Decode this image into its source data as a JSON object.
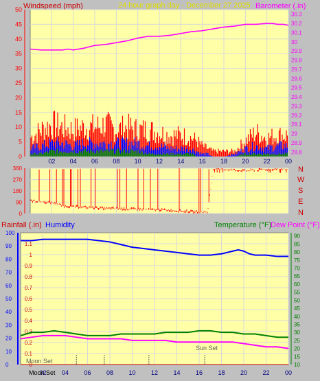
{
  "header": {
    "left_label": "Windspeed (mph)",
    "center_label": "24 hour graph day - December 27 2025",
    "right_label": "Barometer (.in)"
  },
  "colors": {
    "background": "#c0c0c0",
    "plot_bg": "#ffffa8",
    "grid": "#d8d8d8",
    "wind_gust": "#ff0000",
    "wind_avg": "#0000ff",
    "wind_low": "#008000",
    "barometer": "#ff00ff",
    "direction": "#ff0000",
    "humidity": "#0000ff",
    "temperature": "#008000",
    "dewpoint": "#ff00ff",
    "left_axis": "#ff0000",
    "right_axis": "#ff00ff",
    "rain_axis": "#0000ff",
    "temp_axis": "#008000",
    "label_red": "#cc0000",
    "label_yellow": "#e0e000",
    "moon_sun_marker": "#606060"
  },
  "x_tick_labels": [
    "02",
    "04",
    "06",
    "08",
    "10",
    "12",
    "14",
    "16",
    "18",
    "20",
    "22",
    "00"
  ],
  "chart_data": [
    {
      "type": "line",
      "name": "wind-barometer",
      "xlabel": "",
      "x_ticks": [
        "02",
        "04",
        "06",
        "08",
        "10",
        "12",
        "14",
        "16",
        "18",
        "20",
        "22",
        "00"
      ],
      "y_left_label": "Windspeed (mph)",
      "y_left_ticks": [
        0,
        5,
        10,
        15,
        20,
        25,
        30,
        35,
        40,
        45,
        50
      ],
      "ylim_left": [
        0,
        50
      ],
      "y_right_label": "Barometer (.in)",
      "y_right_ticks": [
        "28.8",
        "28.9",
        "29",
        "29.1",
        "29.2",
        "29.3",
        "29.4",
        "29.5",
        "29.6",
        "29.7",
        "29.8",
        "29.9",
        "30",
        "30.1",
        "30.2",
        "30.3"
      ],
      "ylim_right": [
        28.75,
        30.35
      ],
      "grid": true,
      "barometer_series": {
        "x": [
          0,
          1,
          2,
          3,
          3.5,
          4,
          5,
          6,
          7,
          8,
          9,
          10,
          10.5,
          11,
          12,
          13,
          14,
          15,
          16,
          17,
          18,
          19,
          20,
          21,
          22,
          22.5,
          23,
          23.5,
          24
        ],
        "y": [
          29.92,
          29.91,
          29.91,
          29.91,
          29.92,
          29.91,
          29.93,
          29.96,
          29.97,
          29.99,
          30.01,
          30.04,
          30.05,
          30.06,
          30.06,
          30.07,
          30.09,
          30.11,
          30.12,
          30.14,
          30.16,
          30.17,
          30.19,
          30.19,
          30.2,
          30.2,
          30.19,
          30.19,
          30.18
        ]
      },
      "wind_gust_series": {
        "x": [
          0,
          1,
          2,
          3,
          4,
          5,
          6,
          7,
          8,
          9,
          10,
          11,
          12,
          13,
          14,
          15,
          15.5,
          16,
          16.5,
          17,
          18,
          19,
          20,
          21,
          22,
          23,
          24
        ],
        "y": [
          7,
          10,
          12,
          11,
          10,
          11,
          11,
          12,
          10,
          11,
          10,
          10,
          9,
          8,
          8,
          7,
          6,
          4,
          3,
          2,
          2,
          2,
          6,
          9,
          7,
          8,
          8
        ]
      },
      "wind_avg_series": {
        "x": [
          0,
          1,
          2,
          3,
          4,
          5,
          6,
          7,
          8,
          9,
          10,
          11,
          12,
          13,
          14,
          15,
          15.5,
          16,
          16.5,
          17,
          18,
          19,
          20,
          21,
          22,
          23,
          24
        ],
        "y": [
          3,
          4,
          5,
          5,
          4,
          5,
          5,
          5,
          5,
          5,
          5,
          4,
          4,
          3,
          3,
          3,
          2,
          1,
          1,
          0,
          0,
          1,
          3,
          4,
          3,
          4,
          4
        ]
      },
      "wind_low_series": {
        "x": [
          0,
          1,
          2,
          3,
          4,
          5,
          6,
          7,
          8,
          9,
          10,
          11,
          12,
          13,
          14,
          15,
          15.5,
          16,
          16.5,
          17,
          18,
          19,
          20,
          21,
          22,
          23,
          24
        ],
        "y": [
          1,
          1,
          2,
          2,
          2,
          2,
          2,
          2,
          2,
          2,
          2,
          1,
          1,
          1,
          1,
          1,
          0,
          0,
          0,
          0,
          0,
          0,
          1,
          1,
          1,
          1,
          1
        ]
      }
    },
    {
      "type": "line",
      "name": "wind-direction",
      "x_ticks": [
        "02",
        "04",
        "06",
        "08",
        "10",
        "12",
        "14",
        "16",
        "18",
        "20",
        "22",
        "00"
      ],
      "y_left_ticks": [
        0,
        90,
        180,
        270,
        360
      ],
      "ylim_left": [
        0,
        360
      ],
      "y_right_ticks": [
        "N",
        "W",
        "S",
        "E",
        "N"
      ],
      "grid": true,
      "direction_series": {
        "x": [
          0,
          1,
          2,
          2.5,
          3,
          4,
          5,
          6,
          7,
          8,
          9,
          10,
          11,
          12,
          13,
          14,
          15,
          16,
          16.5,
          17,
          18,
          19,
          20,
          21,
          22,
          23,
          24
        ],
        "y": [
          100,
          95,
          85,
          80,
          60,
          55,
          50,
          45,
          40,
          40,
          35,
          35,
          30,
          30,
          25,
          20,
          15,
          10,
          15,
          355,
          350,
          345,
          340,
          345,
          350,
          355,
          350
        ]
      }
    },
    {
      "type": "line",
      "name": "rain-humidity-temperature",
      "x_ticks": [
        "02",
        "04",
        "06",
        "08",
        "10",
        "12",
        "14",
        "16",
        "18",
        "20",
        "22",
        "00"
      ],
      "rain_label": "Rainfall (.in)",
      "humidity_label": "Humidity",
      "temperature_label": "Temperature (°F)",
      "dewpoint_label": "Dew Point (°F)",
      "humidity_ticks": [
        0,
        10,
        20,
        30,
        40,
        50,
        60,
        70,
        80,
        90,
        100
      ],
      "ylim_humidity": [
        0,
        100
      ],
      "rain_ticks": [
        "0",
        "0.1",
        "0.2",
        "0.3",
        "0.4",
        "0.5",
        "0.6",
        "0.7",
        "0.8",
        "0.9",
        "1",
        "1.1"
      ],
      "ylim_rain": [
        0,
        1.2
      ],
      "temp_ticks": [
        10,
        15,
        20,
        25,
        30,
        35,
        40,
        45,
        50,
        55,
        60,
        65,
        70,
        75,
        80,
        85,
        90
      ],
      "ylim_temp": [
        10,
        92
      ],
      "grid": true,
      "humidity_series": {
        "x": [
          0,
          1,
          2,
          3,
          4,
          5,
          6,
          7,
          8,
          9,
          10,
          11,
          12,
          13,
          14,
          15,
          16,
          17,
          18,
          19,
          19.5,
          20,
          20.5,
          21,
          22,
          23,
          24
        ],
        "y": [
          94,
          94,
          95,
          95,
          95,
          95,
          95,
          94,
          93,
          91,
          89,
          88,
          87,
          86,
          85,
          84,
          83,
          83,
          84,
          86,
          87,
          86,
          84,
          83,
          83,
          82,
          82
        ]
      },
      "temperature_series": {
        "x": [
          0,
          1,
          2,
          3,
          4,
          5,
          6,
          7,
          8,
          9,
          10,
          11,
          12,
          13,
          14,
          15,
          16,
          17,
          18,
          19,
          20,
          21,
          22,
          23,
          24
        ],
        "y": [
          28,
          30,
          30,
          31,
          30,
          29,
          28,
          28,
          28,
          29,
          29,
          29,
          29,
          30,
          30,
          30,
          31,
          31,
          30,
          30,
          29,
          29,
          28,
          27,
          27
        ]
      },
      "dewpoint_series": {
        "x": [
          0,
          1,
          2,
          3,
          4,
          5,
          6,
          7,
          8,
          9,
          10,
          11,
          12,
          13,
          14,
          15,
          16,
          17,
          18,
          19,
          20,
          21,
          22,
          23,
          24
        ],
        "y": [
          26,
          27,
          28,
          28,
          28,
          27,
          26,
          26,
          26,
          26,
          25,
          25,
          25,
          25,
          24,
          24,
          24,
          24,
          24,
          24,
          23,
          22,
          21,
          21,
          20
        ]
      },
      "rain_series": {
        "x": [
          0,
          24
        ],
        "y": [
          0,
          0
        ]
      },
      "annotations": {
        "moon_set_label": "Moon Set",
        "sun_set_label": "Sun Set",
        "moon_set_bottom_label": "Moon Set",
        "markers_x": [
          5,
          7.5,
          11.5,
          16.5
        ]
      }
    }
  ]
}
